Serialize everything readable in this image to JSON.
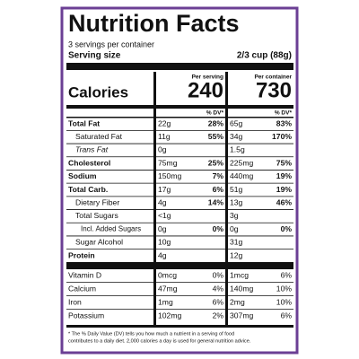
{
  "title": "Nutrition Facts",
  "servings": "3 servings per container",
  "serving_size": {
    "label": "Serving size",
    "value": "2/3 cup (88g)"
  },
  "columns": [
    "Per serving",
    "Per container"
  ],
  "calories": {
    "label": "Calories",
    "values": [
      "240",
      "730"
    ]
  },
  "dv_header": [
    "% DV*",
    "% DV*"
  ],
  "nutrients": [
    [
      "Total Fat",
      "22g",
      "28%",
      "65g",
      "83%"
    ],
    [
      "Saturated Fat",
      "11g",
      "55%",
      "34g",
      "170%"
    ],
    [
      "Trans Fat",
      "0g",
      null,
      "1.5g",
      null
    ],
    [
      "Cholesterol",
      "75mg",
      "25%",
      "225mg",
      "75%"
    ],
    [
      "Sodium",
      "150mg",
      "7%",
      "440mg",
      "19%"
    ],
    [
      "Total Carb.",
      "17g",
      "6%",
      "51g",
      "19%"
    ],
    [
      "Dietary Fiber",
      "4g",
      "14%",
      "13g",
      "46%"
    ],
    [
      "Total Sugars",
      "<1g",
      null,
      "3g",
      null
    ],
    [
      "Incl. Added Sugars",
      "0g",
      "0%",
      "0g",
      "0%"
    ],
    [
      "Sugar Alcohol",
      "10g",
      null,
      "31g",
      null
    ],
    [
      "Protein",
      "4g",
      null,
      "12g",
      null
    ]
  ],
  "vitamins": [
    [
      "Vitamin D",
      "0mcg",
      "0%",
      "1mcg",
      "6%"
    ],
    [
      "Calcium",
      "47mg",
      "4%",
      "140mg",
      "10%"
    ],
    [
      "Iron",
      "1mg",
      "6%",
      "2mg",
      "10%"
    ],
    [
      "Potassium",
      "102mg",
      "2%",
      "307mg",
      "6%"
    ]
  ],
  "footnote": [
    "* The % Daily Value (DV) tells you how much a nutrient in a serving of food",
    "contributes to a daily diet. 2,000 calories a day is used for general nutrition advice."
  ]
}
